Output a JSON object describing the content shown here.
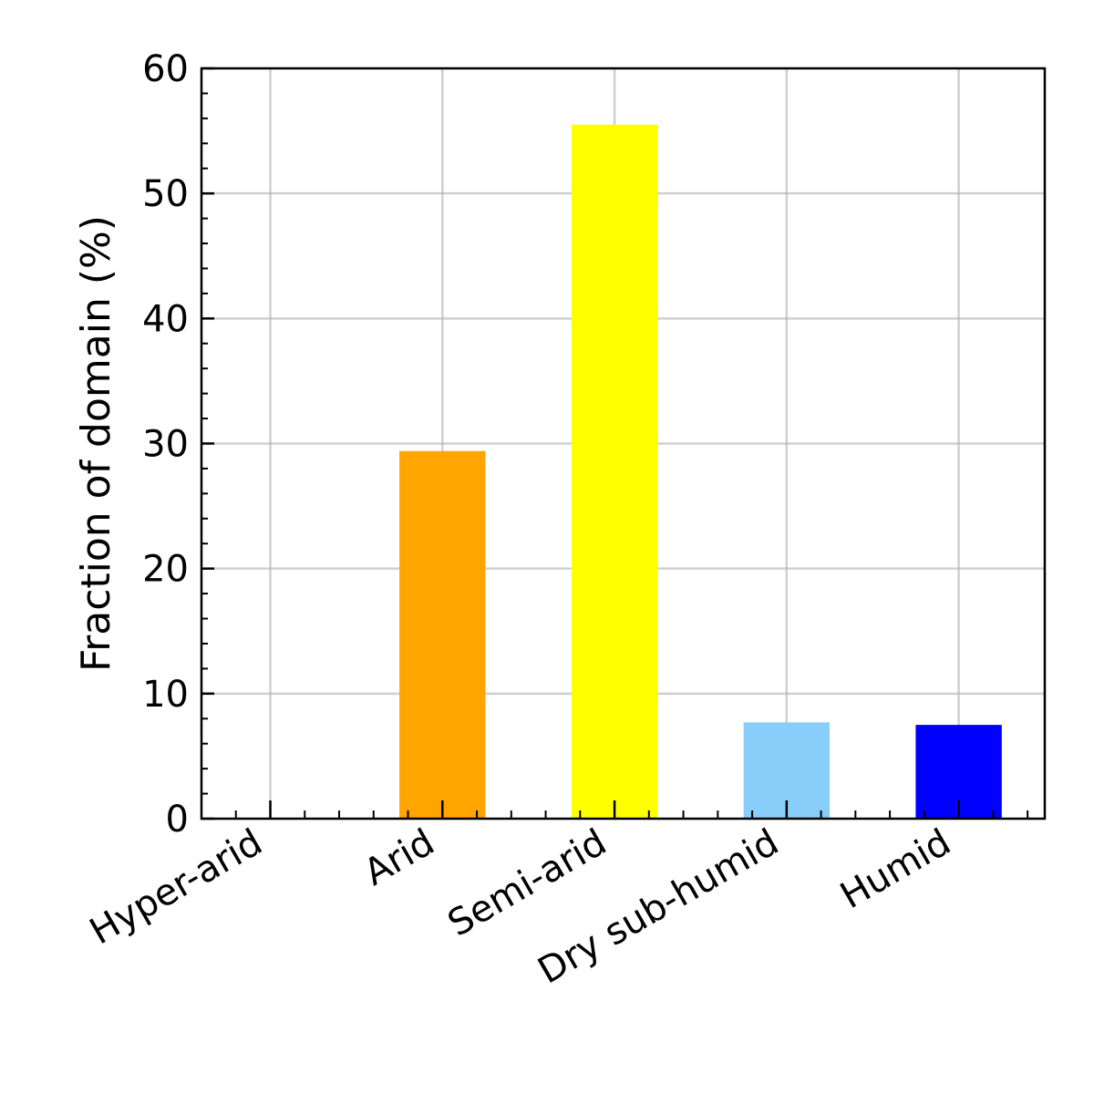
{
  "chart_data": {
    "type": "bar",
    "title": "",
    "xlabel": "",
    "ylabel": "Fraction of domain (%)",
    "categories": [
      "Hyper-arid",
      "Arid",
      "Semi-arid",
      "Dry sub-humid",
      "Humid"
    ],
    "values": [
      0,
      29.4,
      55.5,
      7.7,
      7.5
    ],
    "colors": [
      "#ff0000",
      "#ffa500",
      "#ffff00",
      "#87cefa",
      "#0000ff"
    ],
    "ylim": [
      0,
      60
    ],
    "yticks": [
      0,
      10,
      20,
      30,
      40,
      50,
      60
    ],
    "grid": true,
    "legend": "none"
  }
}
